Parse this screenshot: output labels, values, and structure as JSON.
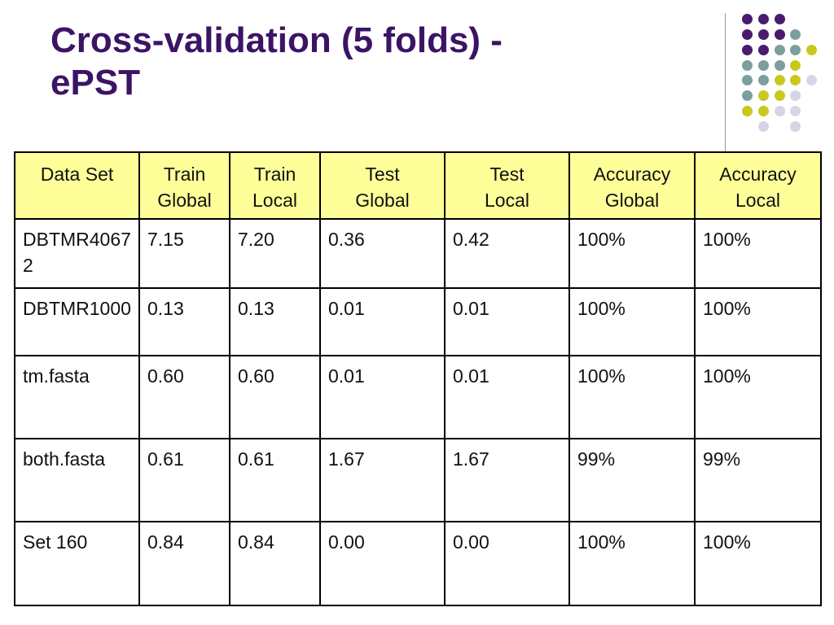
{
  "slide": {
    "title_line1": "Cross-validation (5 folds) -",
    "title_line2": "ePST"
  },
  "decoration": {
    "dot_colors": {
      "purple": "#4a1a6e",
      "teal": "#7a9f9c",
      "yellow": "#c9c91d",
      "lavender": "#d5d5e6"
    }
  },
  "table": {
    "header_bg": "#ffff99",
    "headers": [
      [
        "Data Set"
      ],
      [
        "Train",
        "Global"
      ],
      [
        "Train",
        "Local"
      ],
      [
        "Test",
        "Global"
      ],
      [
        "Test",
        "Local"
      ],
      [
        "Accuracy",
        "Global"
      ],
      [
        "Accuracy",
        "Local"
      ]
    ],
    "rows": [
      [
        "DBTMR40672",
        "7.15",
        "7.20",
        "0.36",
        "0.42",
        "100%",
        "100%"
      ],
      [
        "DBTMR1000",
        "0.13",
        "0.13",
        "0.01",
        "0.01",
        "100%",
        "100%"
      ],
      [
        "tm.fasta",
        "0.60",
        "0.60",
        "0.01",
        "0.01",
        "100%",
        "100%"
      ],
      [
        "both.fasta",
        "0.61",
        "0.61",
        "1.67",
        "1.67",
        "99%",
        "99%"
      ],
      [
        "Set 160",
        "0.84",
        "0.84",
        "0.00",
        "0.00",
        "100%",
        "100%"
      ]
    ]
  }
}
